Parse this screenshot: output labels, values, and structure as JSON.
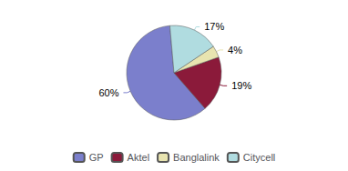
{
  "chart_data": {
    "type": "pie",
    "categories": [
      "GP",
      "Aktel",
      "Banglalink",
      "Citycell"
    ],
    "values": [
      60,
      19,
      4,
      17
    ],
    "value_labels": [
      "60%",
      "19%",
      "4%",
      "17%"
    ],
    "colors": [
      "#7B7FCC",
      "#8B1A3A",
      "#E8E4B0",
      "#B0DCE0"
    ],
    "data_labels": true,
    "legend": "bottom"
  }
}
